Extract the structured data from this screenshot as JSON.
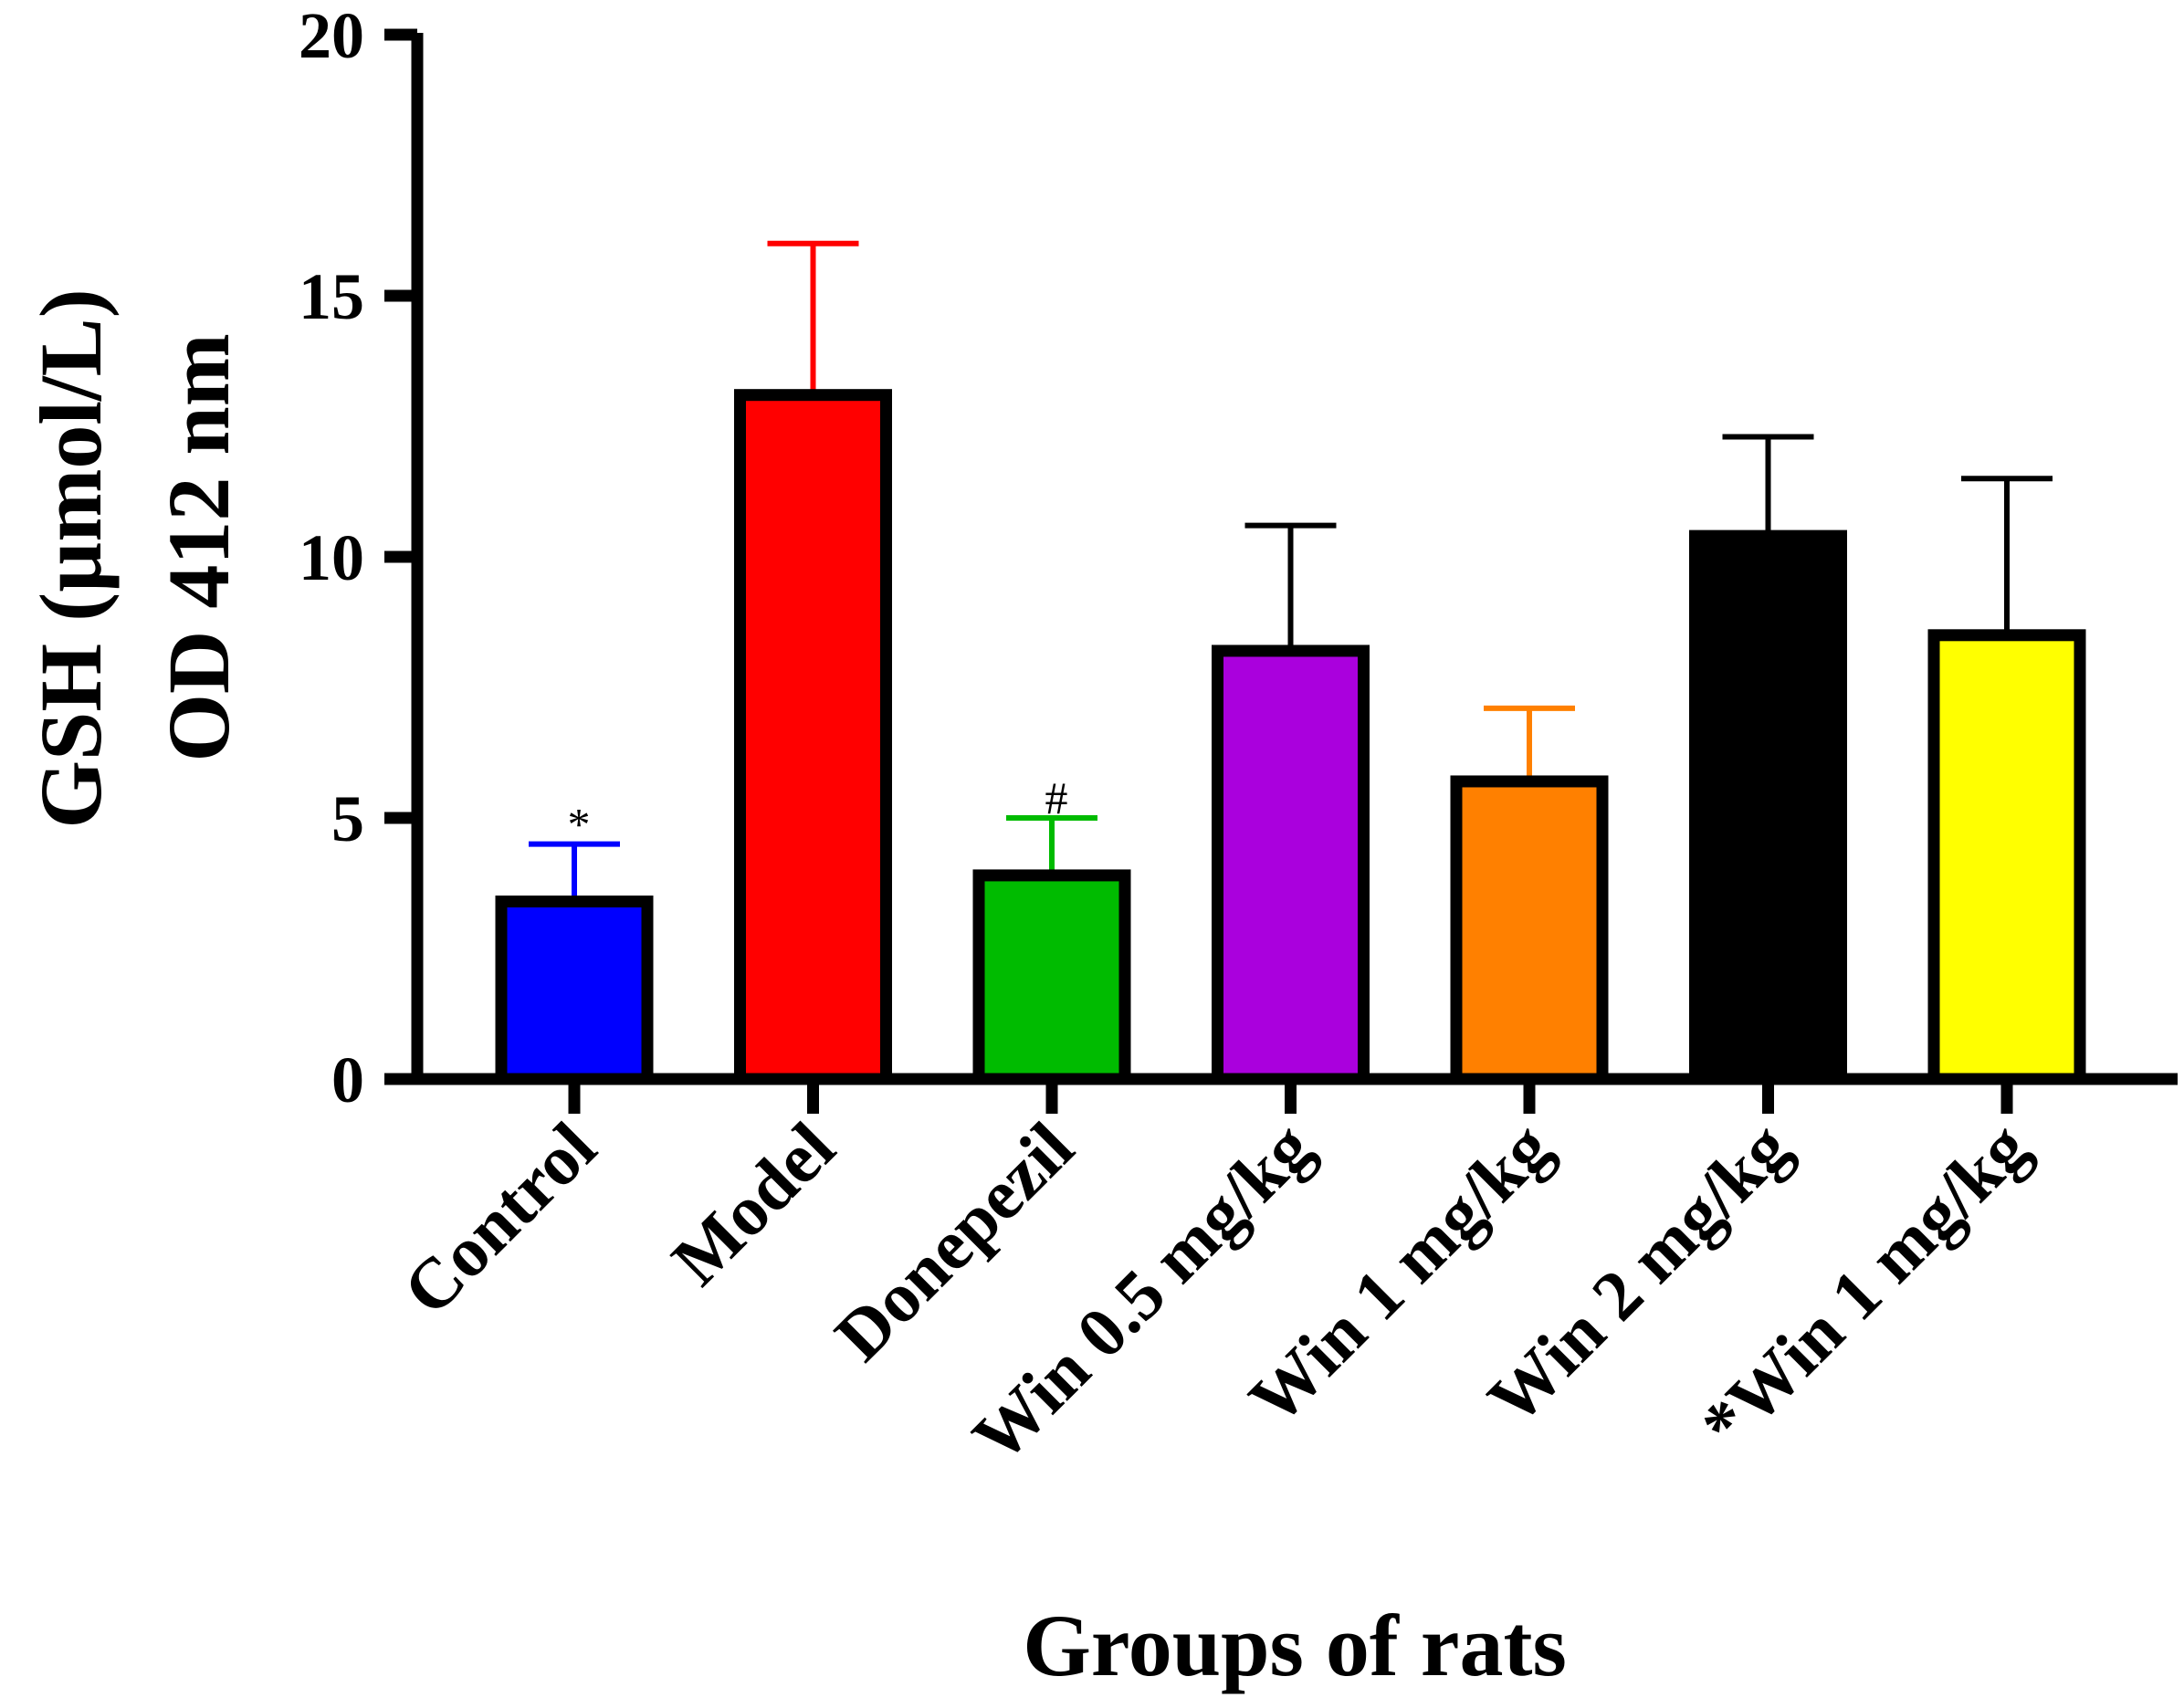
{
  "chart_data": {
    "type": "bar",
    "title": "",
    "xlabel": "Groups of rats",
    "ylabel_lines": [
      "GSH (µmol/L)",
      "OD 412 nm"
    ],
    "categories": [
      "Control",
      "Model",
      "Donepezil",
      "Win 0.5 mg/kg",
      "Win 1 mg/kg",
      "Win 2 mg/kg",
      "*Win 1 mg/kg"
    ],
    "values": [
      3.4,
      13.1,
      3.9,
      8.2,
      5.7,
      10.4,
      8.5
    ],
    "error_upper": [
      1.1,
      2.9,
      1.1,
      2.4,
      1.4,
      1.9,
      3.0
    ],
    "colors": [
      "#0000ff",
      "#ff0000",
      "#00bb00",
      "#aa00dd",
      "#ff8000",
      "#000000",
      "#ffff00"
    ],
    "error_colors": [
      "#0000ff",
      "#ff0000",
      "#00bb00",
      "#000000",
      "#ff8000",
      "#000000",
      "#000000"
    ],
    "annotations": [
      "*",
      "",
      "#",
      "",
      "",
      "",
      ""
    ],
    "ylim": [
      0,
      20
    ],
    "yticks": [
      0,
      5,
      10,
      15,
      20
    ],
    "grid": false,
    "legend": "none"
  }
}
